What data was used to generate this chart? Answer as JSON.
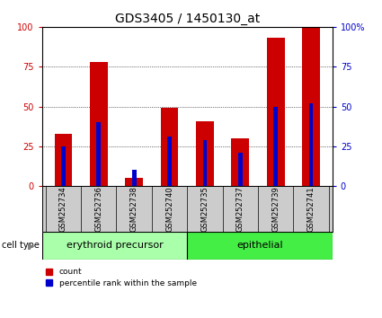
{
  "title": "GDS3405 / 1450130_at",
  "samples": [
    "GSM252734",
    "GSM252736",
    "GSM252738",
    "GSM252740",
    "GSM252735",
    "GSM252737",
    "GSM252739",
    "GSM252741"
  ],
  "red_values": [
    33,
    78,
    5,
    49,
    41,
    30,
    93,
    100
  ],
  "blue_values": [
    25,
    40,
    10,
    31,
    29,
    21,
    50,
    52
  ],
  "groups": [
    {
      "label": "erythroid precursor",
      "start": 0,
      "end": 4,
      "color": "#aaffaa"
    },
    {
      "label": "epithelial",
      "start": 4,
      "end": 8,
      "color": "#44ee44"
    }
  ],
  "cell_type_label": "cell type",
  "legend_red": "count",
  "legend_blue": "percentile rank within the sample",
  "ylim": [
    0,
    100
  ],
  "y_ticks": [
    0,
    25,
    50,
    75,
    100
  ],
  "right_y_tick_labels": [
    "0",
    "25",
    "50",
    "75",
    "100%"
  ],
  "red_color": "#cc0000",
  "blue_color": "#0000cc",
  "bg_color": "#ffffff",
  "bar_width": 0.5,
  "blue_bar_width": 0.12,
  "title_fontsize": 10,
  "tick_fontsize": 7,
  "sample_fontsize": 6,
  "group_fontsize": 8
}
